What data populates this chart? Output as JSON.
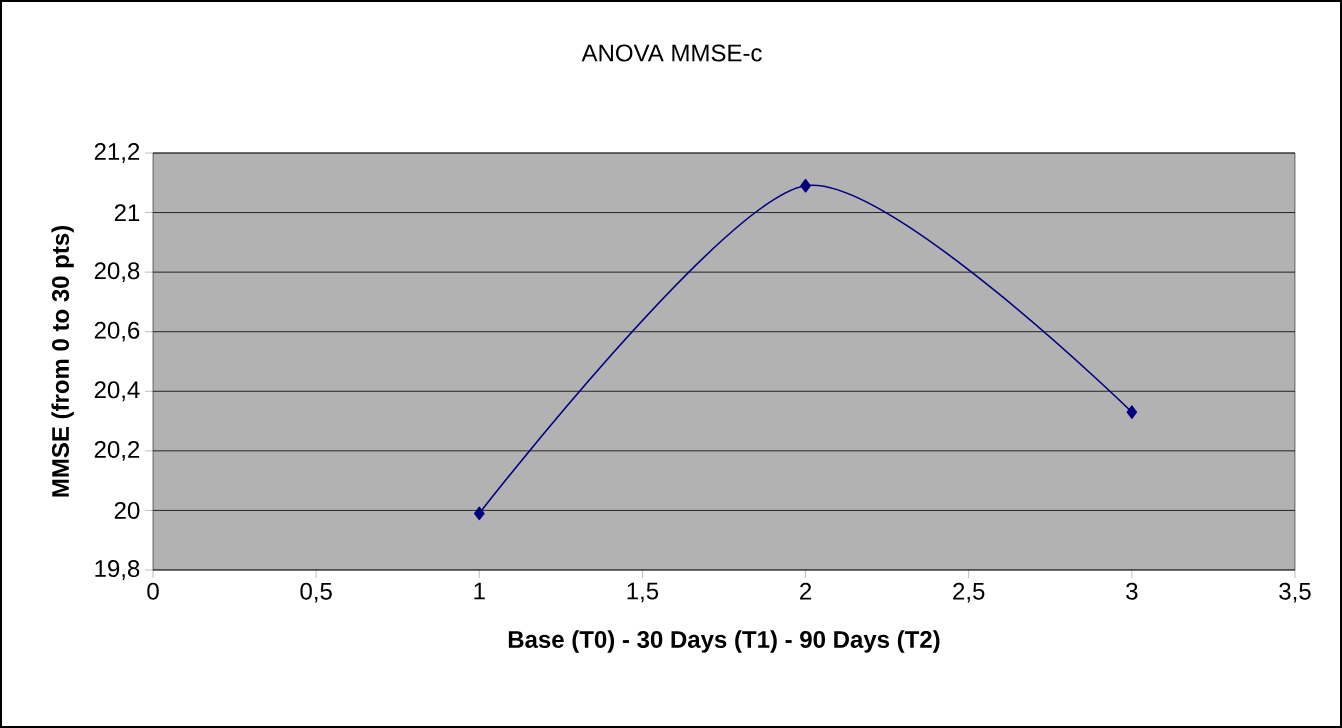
{
  "chart_data": {
    "type": "line",
    "title": "ANOVA MMSE-c",
    "xlabel": "Base (T0) - 30 Days (T1) - 90 Days (T2)",
    "ylabel": "MMSE  (from  0  to  30  pts)",
    "x": [
      1,
      2,
      3
    ],
    "series": [
      {
        "color": "#000080",
        "values": [
          19.99,
          21.09,
          20.33
        ]
      }
    ],
    "xlim": [
      0,
      3.5
    ],
    "ylim": [
      19.8,
      21.2
    ],
    "xticks": [
      0,
      {
        "value": 0.5,
        "label": "0,5"
      },
      1,
      {
        "value": 1.5,
        "label": "1,5"
      },
      2,
      {
        "value": 2.5,
        "label": "2,5"
      },
      3,
      {
        "value": 3.5,
        "label": "3,5"
      }
    ],
    "yticks": [
      {
        "value": 19.8,
        "label": "19,8"
      },
      20,
      {
        "value": 20.2,
        "label": "20,2"
      },
      {
        "value": 20.4,
        "label": "20,4"
      },
      {
        "value": 20.6,
        "label": "20,6"
      },
      {
        "value": 20.8,
        "label": "20,8"
      },
      21,
      {
        "value": 21.2,
        "label": "21,2"
      }
    ],
    "grid": "y",
    "marker": "diamond",
    "line_style": "solid"
  }
}
